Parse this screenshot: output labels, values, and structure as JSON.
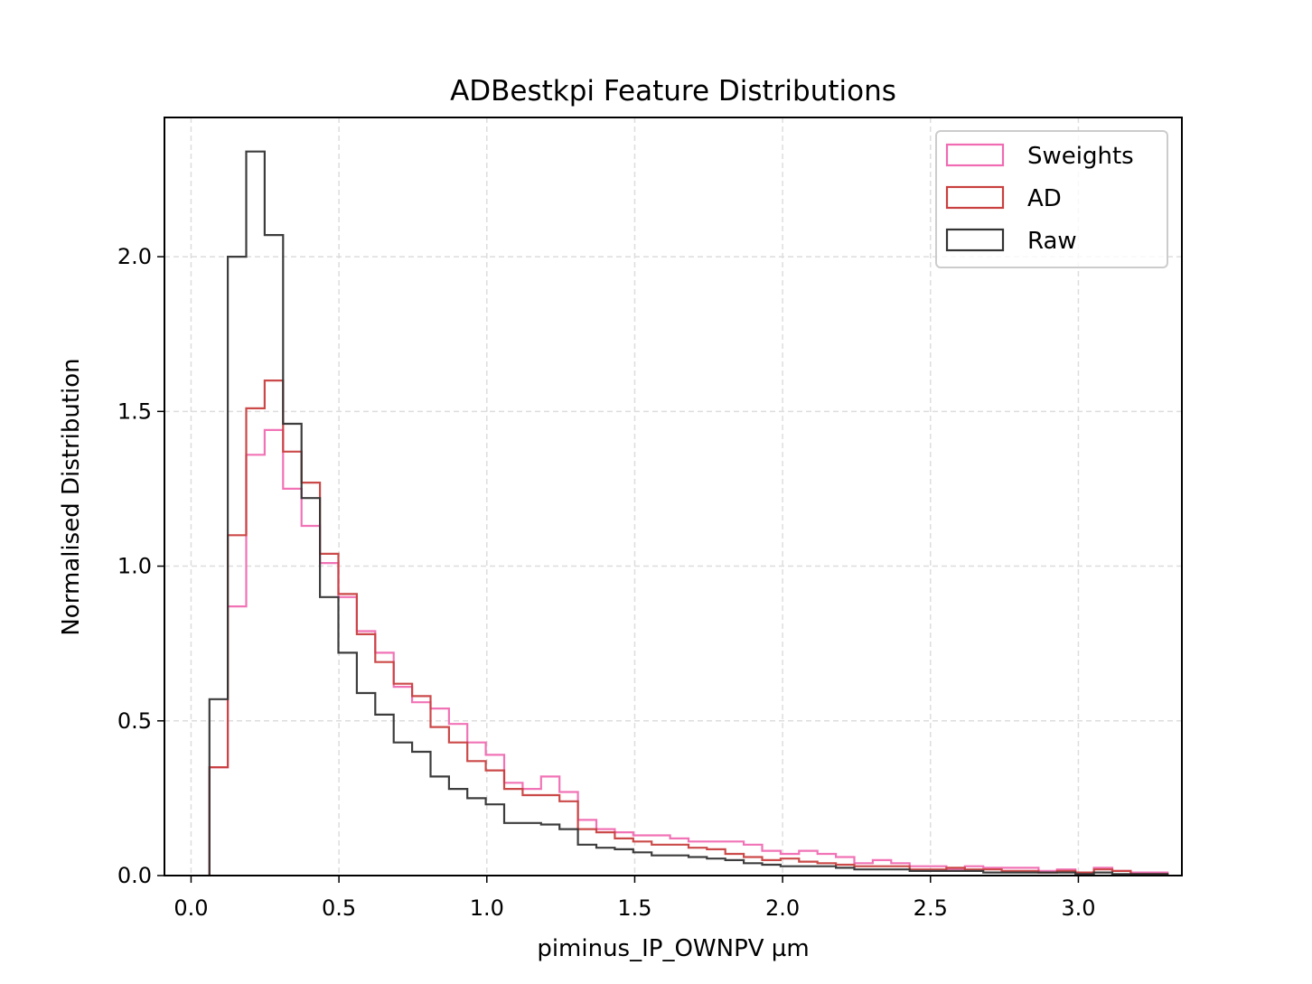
{
  "chart_data": {
    "type": "histogram",
    "title": "ADBestkpi Feature Distributions",
    "xlabel": "piminus_IP_OWNPV µm",
    "ylabel": "Normalised Distribution",
    "xlim": [
      -0.09,
      3.35
    ],
    "ylim": [
      0,
      2.45
    ],
    "xticks": [
      "0.0",
      "0.5",
      "1.0",
      "1.5",
      "2.0",
      "2.5",
      "3.0"
    ],
    "yticks": [
      "0.0",
      "0.5",
      "1.0",
      "1.5",
      "2.0"
    ],
    "grid": true,
    "legend_position": "upper-right",
    "bin_start": 0.062,
    "bin_width": 0.0623,
    "series": [
      {
        "name": "Sweights",
        "color": "#f06bb2",
        "values": [
          0.35,
          0.87,
          1.36,
          1.44,
          1.25,
          1.13,
          1.01,
          0.9,
          0.79,
          0.72,
          0.61,
          0.56,
          0.54,
          0.49,
          0.43,
          0.39,
          0.3,
          0.28,
          0.32,
          0.27,
          0.18,
          0.15,
          0.14,
          0.13,
          0.13,
          0.12,
          0.11,
          0.11,
          0.11,
          0.1,
          0.08,
          0.07,
          0.08,
          0.07,
          0.06,
          0.04,
          0.05,
          0.04,
          0.03,
          0.03,
          0.02,
          0.03,
          0.025,
          0.025,
          0.025,
          0.015,
          0.02,
          0.01,
          0.025,
          0.015,
          0.01,
          0.01
        ]
      },
      {
        "name": "AD",
        "color": "#c8403f",
        "values": [
          0.35,
          1.1,
          1.51,
          1.6,
          1.37,
          1.27,
          1.04,
          0.91,
          0.78,
          0.69,
          0.62,
          0.58,
          0.48,
          0.43,
          0.37,
          0.34,
          0.28,
          0.26,
          0.26,
          0.24,
          0.15,
          0.14,
          0.12,
          0.11,
          0.1,
          0.1,
          0.09,
          0.085,
          0.07,
          0.06,
          0.05,
          0.055,
          0.045,
          0.04,
          0.035,
          0.03,
          0.03,
          0.03,
          0.02,
          0.02,
          0.025,
          0.02,
          0.02,
          0.015,
          0.015,
          0.01,
          0.015,
          0.01,
          0.02,
          0.015,
          0.005,
          0.005
        ]
      },
      {
        "name": "Raw",
        "color": "#333333",
        "values": [
          0.57,
          2.0,
          2.34,
          2.07,
          1.46,
          1.22,
          0.9,
          0.72,
          0.59,
          0.52,
          0.43,
          0.4,
          0.32,
          0.28,
          0.25,
          0.23,
          0.17,
          0.17,
          0.165,
          0.15,
          0.1,
          0.09,
          0.085,
          0.075,
          0.065,
          0.065,
          0.06,
          0.055,
          0.05,
          0.04,
          0.035,
          0.03,
          0.03,
          0.03,
          0.025,
          0.02,
          0.02,
          0.02,
          0.015,
          0.015,
          0.015,
          0.015,
          0.01,
          0.01,
          0.01,
          0.01,
          0.01,
          0.005,
          0.01,
          0.005,
          0.005,
          0.005
        ]
      }
    ]
  }
}
